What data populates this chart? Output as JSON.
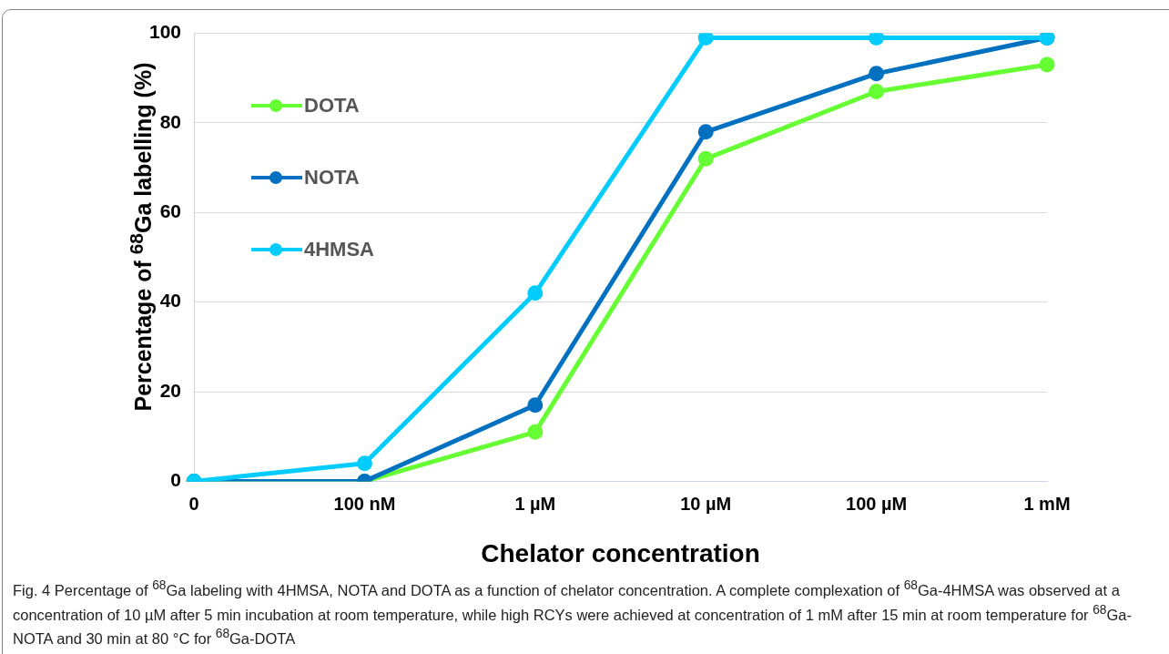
{
  "chart_data": {
    "type": "line",
    "xlabel": "Chelator concentration",
    "ylabel": "Percentage of  $^{68}$Ga labelling  (%)",
    "categories": [
      "0",
      "100 nM",
      "1 µM",
      "10 µM",
      "100 µM",
      "1 mM"
    ],
    "series": [
      {
        "name": "DOTA",
        "color": "#66ff33",
        "values": [
          0,
          0,
          11,
          72,
          87,
          93
        ]
      },
      {
        "name": "NOTA",
        "color": "#0070c0",
        "values": [
          0,
          0,
          17,
          78,
          91,
          99
        ]
      },
      {
        "name": "4HMSA",
        "color": "#00ccff",
        "values": [
          0,
          4,
          42,
          99,
          99,
          99
        ]
      }
    ],
    "ylim": [
      0,
      100
    ],
    "yticks": [
      0,
      20,
      40,
      60,
      80,
      100
    ],
    "grid": "y",
    "legend": "top left",
    "marker": "circle",
    "line_style": "solid",
    "annotations": [
      "Fig. 4  Percentage of $^{68}$Ga labeling with 4HMSA, NOTA and DOTA as a function of chelator concentration. A complete complexation of $^{68}$Ga-4HMSA was observed at a concentration of 10 µM after 5 min incubation at room temperature, while high RCYs were achieved at concentration of 1 mM after 15 min at room temperature for $^{68}$Ga-NOTA and 30 min at 80 °C for $^{68}$Ga-DOTA"
    ]
  }
}
